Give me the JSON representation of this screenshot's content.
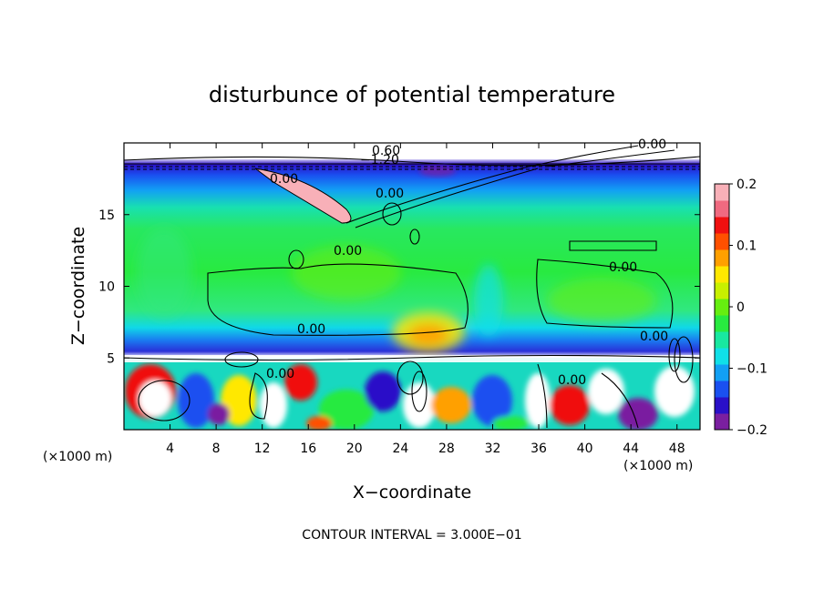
{
  "chart_data": {
    "type": "heatmap",
    "title": "disturbunce of potential temperature",
    "xlabel": "X−coordinate",
    "ylabel": "Z−coordinate",
    "x_unit": "(×1000 m)",
    "y_unit": "(×1000 m)",
    "xlim": [
      0,
      50
    ],
    "ylim": [
      0,
      20
    ],
    "x_ticks": [
      4,
      8,
      12,
      16,
      20,
      24,
      28,
      32,
      36,
      40,
      44,
      48
    ],
    "y_ticks": [
      5,
      10,
      15
    ],
    "colorbar": {
      "range": [
        -0.2,
        0.2
      ],
      "tick_values": [
        0.2,
        0.1,
        0,
        -0.1,
        -0.2
      ],
      "tick_labels": [
        "0.2",
        "0.1",
        "0",
        "−0.1",
        "−0.2"
      ],
      "colors": [
        "#7a1fa0",
        "#2a10c8",
        "#1a50f0",
        "#12a0f4",
        "#10e0e8",
        "#18e8a0",
        "#28ea40",
        "#66ee10",
        "#c8f000",
        "#ffe800",
        "#ffa000",
        "#ff5000",
        "#f01010",
        "#f06a80",
        "#f8b0b8"
      ]
    },
    "contour_labels": [
      "0.00",
      "0.00",
      "0.00",
      "0.00",
      "0.00",
      "0.00",
      "0.00",
      "0.00",
      "0.00",
      "0.60",
      "−1.20"
    ],
    "grid": false,
    "legend": "right colorbar"
  },
  "footer": {
    "contour_interval": "CONTOUR INTERVAL =  3.000E−01"
  }
}
